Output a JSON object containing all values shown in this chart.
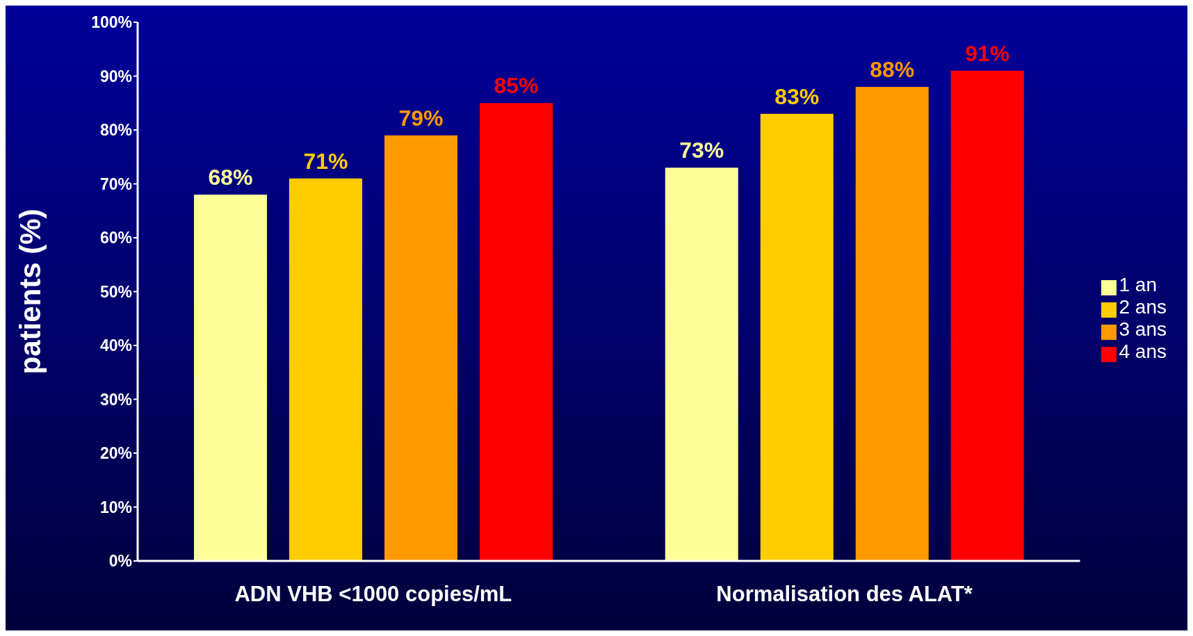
{
  "chart_data": {
    "type": "bar",
    "ylabel": "patients (%)",
    "categories": [
      "ADN VHB <1000 copies/mL",
      "Normalisation des ALAT*"
    ],
    "series": [
      {
        "name": "1 an",
        "color": "#ffff99",
        "values": [
          68,
          73
        ],
        "value_labels": [
          "68%",
          "73%"
        ]
      },
      {
        "name": "2 ans",
        "color": "#ffcc00",
        "values": [
          71,
          83
        ],
        "value_labels": [
          "71%",
          "83%"
        ]
      },
      {
        "name": "3 ans",
        "color": "#ff9900",
        "values": [
          79,
          88
        ],
        "value_labels": [
          "79%",
          "88%"
        ]
      },
      {
        "name": "4 ans",
        "color": "#ff0000",
        "values": [
          85,
          91
        ],
        "value_labels": [
          "85%",
          "91%"
        ]
      }
    ],
    "ylim": [
      0,
      100
    ],
    "yticks": [
      {
        "value": 0,
        "label": "0%"
      },
      {
        "value": 10,
        "label": "10%"
      },
      {
        "value": 20,
        "label": "20%"
      },
      {
        "value": 30,
        "label": "30%"
      },
      {
        "value": 40,
        "label": "40%"
      },
      {
        "value": 50,
        "label": "50%"
      },
      {
        "value": 60,
        "label": "60%"
      },
      {
        "value": 70,
        "label": "70%"
      },
      {
        "value": 80,
        "label": "80%"
      },
      {
        "value": 90,
        "label": "90%"
      },
      {
        "value": 100,
        "label": "100%"
      }
    ],
    "legend": "right"
  }
}
